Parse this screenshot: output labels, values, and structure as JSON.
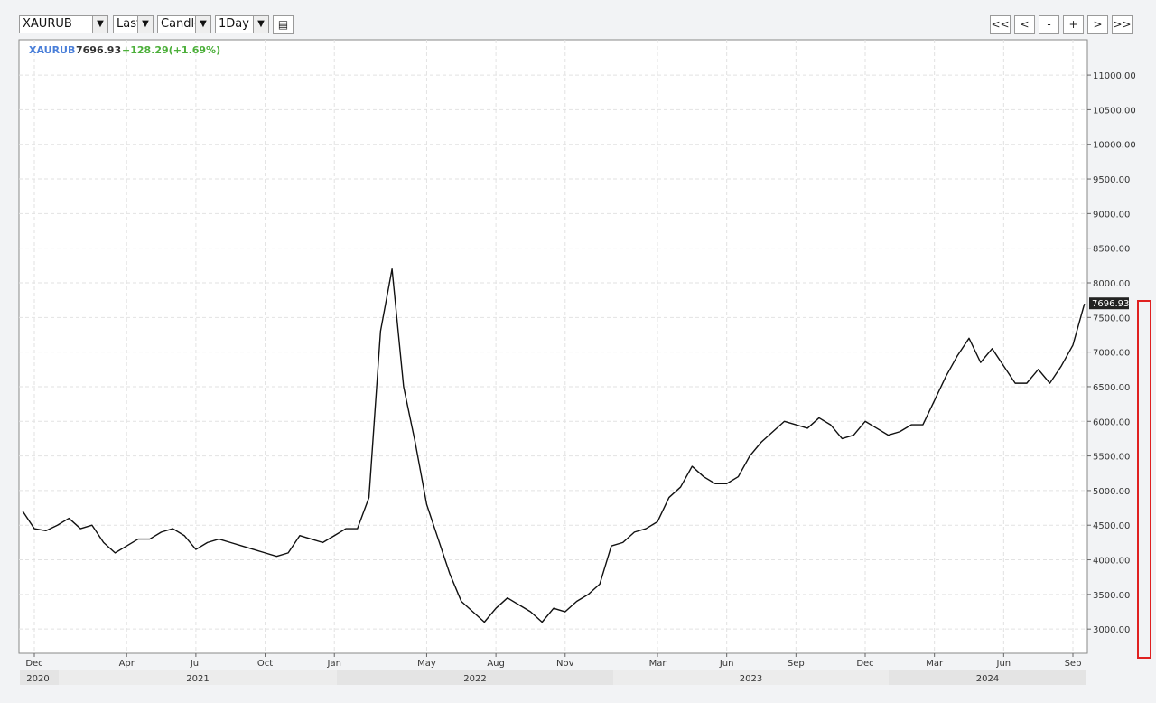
{
  "toolbar": {
    "symbol_input": "XAURUB",
    "price_field": "Last",
    "chart_style": "Candle",
    "interval": "1Day",
    "nav_buttons": [
      "<<",
      "<",
      "-",
      "+",
      ">",
      ">>"
    ]
  },
  "chart_data": {
    "type": "line",
    "symbol": "XAURUB",
    "change": "+128.29(+1.69%)",
    "color": "#111111",
    "grid": true,
    "categories": [
      null,
      "Dec",
      null,
      null,
      null,
      null,
      null,
      null,
      null,
      "Apr",
      null,
      null,
      null,
      null,
      null,
      "Jul",
      null,
      null,
      null,
      null,
      null,
      "Oct",
      null,
      null,
      null,
      null,
      null,
      "Jan",
      null,
      null,
      null,
      null,
      null,
      null,
      null,
      "May",
      null,
      null,
      null,
      null,
      null,
      "Aug",
      null,
      null,
      null,
      null,
      null,
      "Nov",
      null,
      null,
      null,
      null,
      null,
      null,
      null,
      "Mar",
      null,
      null,
      null,
      null,
      null,
      "Jun",
      null,
      null,
      null,
      null,
      null,
      "Sep",
      null,
      null,
      null,
      null,
      null,
      "Dec",
      null,
      null,
      null,
      null,
      null,
      "Mar",
      null,
      null,
      null,
      null,
      null,
      "Jun",
      null,
      null,
      null,
      null,
      null,
      "Sep",
      null
    ],
    "years": [
      "2020",
      "2021",
      "2022",
      "2023",
      "2024"
    ],
    "series": [
      {
        "name": "XAURUB",
        "color": "#111111",
        "values": [
          4700,
          4450,
          4420,
          4500,
          4600,
          4450,
          4500,
          4250,
          4100,
          4200,
          4300,
          4300,
          4400,
          4450,
          4350,
          4150,
          4250,
          4300,
          4250,
          4200,
          4150,
          4100,
          4050,
          4100,
          4350,
          4300,
          4250,
          4350,
          4450,
          4450,
          4900,
          7300,
          8200,
          6500,
          5700,
          4800,
          4300,
          3800,
          3400,
          3250,
          3100,
          3300,
          3450,
          3350,
          3250,
          3100,
          3300,
          3250,
          3400,
          3500,
          3650,
          4200,
          4250,
          4400,
          4450,
          4550,
          4900,
          5050,
          5350,
          5200,
          5100,
          5100,
          5200,
          5500,
          5700,
          5850,
          6000,
          5950,
          5900,
          6050,
          5950,
          5750,
          5800,
          6000,
          5900,
          5800,
          5850,
          5950,
          5950,
          6300,
          6650,
          6950,
          7200,
          6850,
          7050,
          6800,
          6550,
          6550,
          6750,
          6550,
          6800,
          7100,
          7696.93
        ]
      }
    ],
    "ylim": [
      2650,
      11510
    ],
    "yticks": [
      {
        "value": 3000,
        "label": "3000.00"
      },
      {
        "value": 3500,
        "label": "3500.00"
      },
      {
        "value": 4000,
        "label": "4000.00"
      },
      {
        "value": 4500,
        "label": "4500.00"
      },
      {
        "value": 5000,
        "label": "5000.00"
      },
      {
        "value": 5500,
        "label": "5500.00"
      },
      {
        "value": 6000,
        "label": "6000.00"
      },
      {
        "value": 6500,
        "label": "6500.00"
      },
      {
        "value": 7000,
        "label": "7000.00"
      },
      {
        "value": 7500,
        "label": "7500.00"
      },
      {
        "value": 8000,
        "label": "8000.00"
      },
      {
        "value": 8500,
        "label": "8500.00"
      },
      {
        "value": 9000,
        "label": "9000.00"
      },
      {
        "value": 9500,
        "label": "9500.00"
      },
      {
        "value": 10000,
        "label": "10000.00"
      },
      {
        "value": 10500,
        "label": "10500.00"
      },
      {
        "value": 11000,
        "label": "11000.00"
      }
    ]
  }
}
